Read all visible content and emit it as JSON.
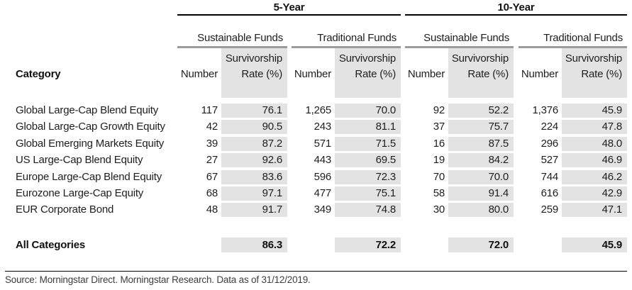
{
  "header": {
    "periods": [
      "5-Year",
      "10-Year"
    ],
    "fund_groups": [
      "Sustainable Funds",
      "Traditional Funds",
      "Sustainable Funds",
      "Traditional Funds"
    ],
    "category_label": "Category",
    "number_label": "Number",
    "rate_label_line1": "Survivorship",
    "rate_label_line2": "Rate (%)"
  },
  "rows": [
    {
      "category": "Global Large-Cap Blend Equity",
      "values": [
        "117",
        "76.1",
        "1,265",
        "70.0",
        "92",
        "52.2",
        "1,376",
        "45.9"
      ]
    },
    {
      "category": "Global Large-Cap Growth Equity",
      "values": [
        "42",
        "90.5",
        "243",
        "81.1",
        "37",
        "75.7",
        "224",
        "47.8"
      ]
    },
    {
      "category": "Global Emerging Markets Equity",
      "values": [
        "39",
        "87.2",
        "571",
        "71.5",
        "16",
        "87.5",
        "296",
        "48.0"
      ]
    },
    {
      "category": "US Large-Cap Blend Equity",
      "values": [
        "27",
        "92.6",
        "443",
        "69.5",
        "19",
        "84.2",
        "527",
        "46.9"
      ]
    },
    {
      "category": "Europe Large-Cap Blend Equity",
      "values": [
        "67",
        "83.6",
        "596",
        "72.3",
        "70",
        "70.0",
        "744",
        "46.2"
      ]
    },
    {
      "category": "Eurozone Large-Cap Equity",
      "values": [
        "68",
        "97.1",
        "477",
        "75.1",
        "58",
        "91.4",
        "616",
        "42.9"
      ]
    },
    {
      "category": "EUR Corporate Bond",
      "values": [
        "48",
        "91.7",
        "349",
        "74.8",
        "30",
        "80.0",
        "259",
        "47.1"
      ]
    }
  ],
  "summary": {
    "label": "All Categories",
    "rates": [
      "86.3",
      "72.2",
      "72.0",
      "45.9"
    ]
  },
  "footer": {
    "source": "Source: Morningstar Direct. Morningstar Research. Data as of 31/12/2019."
  },
  "colors": {
    "cell_background": "#e3e3e3",
    "subgroup_rule": "#9b9b9b",
    "period_rule": "#000000",
    "text": "#1e1e1e"
  },
  "chart_data": {
    "type": "table",
    "title": "Fund survivorship rates, sustainable vs traditional funds",
    "columns": [
      "Category",
      "5Y Sustainable Number",
      "5Y Sustainable Survivorship Rate (%)",
      "5Y Traditional Number",
      "5Y Traditional Survivorship Rate (%)",
      "10Y Sustainable Number",
      "10Y Sustainable Survivorship Rate (%)",
      "10Y Traditional Number",
      "10Y Traditional Survivorship Rate (%)"
    ],
    "rows": [
      [
        "Global Large-Cap Blend Equity",
        117,
        76.1,
        1265,
        70.0,
        92,
        52.2,
        1376,
        45.9
      ],
      [
        "Global Large-Cap Growth Equity",
        42,
        90.5,
        243,
        81.1,
        37,
        75.7,
        224,
        47.8
      ],
      [
        "Global Emerging Markets Equity",
        39,
        87.2,
        571,
        71.5,
        16,
        87.5,
        296,
        48.0
      ],
      [
        "US Large-Cap Blend Equity",
        27,
        92.6,
        443,
        69.5,
        19,
        84.2,
        527,
        46.9
      ],
      [
        "Europe Large-Cap Blend Equity",
        67,
        83.6,
        596,
        72.3,
        70,
        70.0,
        744,
        46.2
      ],
      [
        "Eurozone Large-Cap Equity",
        68,
        97.1,
        477,
        75.1,
        58,
        91.4,
        616,
        42.9
      ],
      [
        "EUR Corporate Bond",
        48,
        91.7,
        349,
        74.8,
        30,
        80.0,
        259,
        47.1
      ],
      [
        "All Categories",
        null,
        86.3,
        null,
        72.2,
        null,
        72.0,
        null,
        45.9
      ]
    ]
  }
}
